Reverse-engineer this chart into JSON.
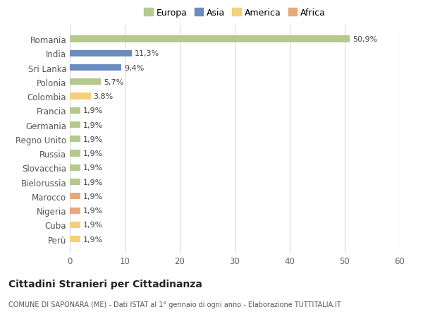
{
  "categories": [
    "Romania",
    "India",
    "Sri Lanka",
    "Polonia",
    "Colombia",
    "Francia",
    "Germania",
    "Regno Unito",
    "Russia",
    "Slovacchia",
    "Bielorussia",
    "Marocco",
    "Nigeria",
    "Cuba",
    "Perù"
  ],
  "values": [
    50.9,
    11.3,
    9.4,
    5.7,
    3.8,
    1.9,
    1.9,
    1.9,
    1.9,
    1.9,
    1.9,
    1.9,
    1.9,
    1.9,
    1.9
  ],
  "colors": [
    "#b5c98e",
    "#6a8bbf",
    "#6a8bbf",
    "#b5c98e",
    "#f5d07a",
    "#b5c98e",
    "#b5c98e",
    "#b5c98e",
    "#b5c98e",
    "#b5c98e",
    "#b5c98e",
    "#e8a87c",
    "#e8a87c",
    "#f5d07a",
    "#f5d07a"
  ],
  "labels": [
    "50,9%",
    "11,3%",
    "9,4%",
    "5,7%",
    "3,8%",
    "1,9%",
    "1,9%",
    "1,9%",
    "1,9%",
    "1,9%",
    "1,9%",
    "1,9%",
    "1,9%",
    "1,9%",
    "1,9%"
  ],
  "xlim": [
    0,
    60
  ],
  "xticks": [
    0,
    10,
    20,
    30,
    40,
    50,
    60
  ],
  "title": "Cittadini Stranieri per Cittadinanza",
  "subtitle": "COMUNE DI SAPONARA (ME) - Dati ISTAT al 1° gennaio di ogni anno - Elaborazione TUTTITALIA.IT",
  "legend_labels": [
    "Europa",
    "Asia",
    "America",
    "Africa"
  ],
  "legend_colors": [
    "#b5c98e",
    "#6a8bbf",
    "#f5d07a",
    "#e8a87c"
  ],
  "background_color": "#ffffff",
  "grid_color": "#d8d8d8",
  "bar_height": 0.45
}
